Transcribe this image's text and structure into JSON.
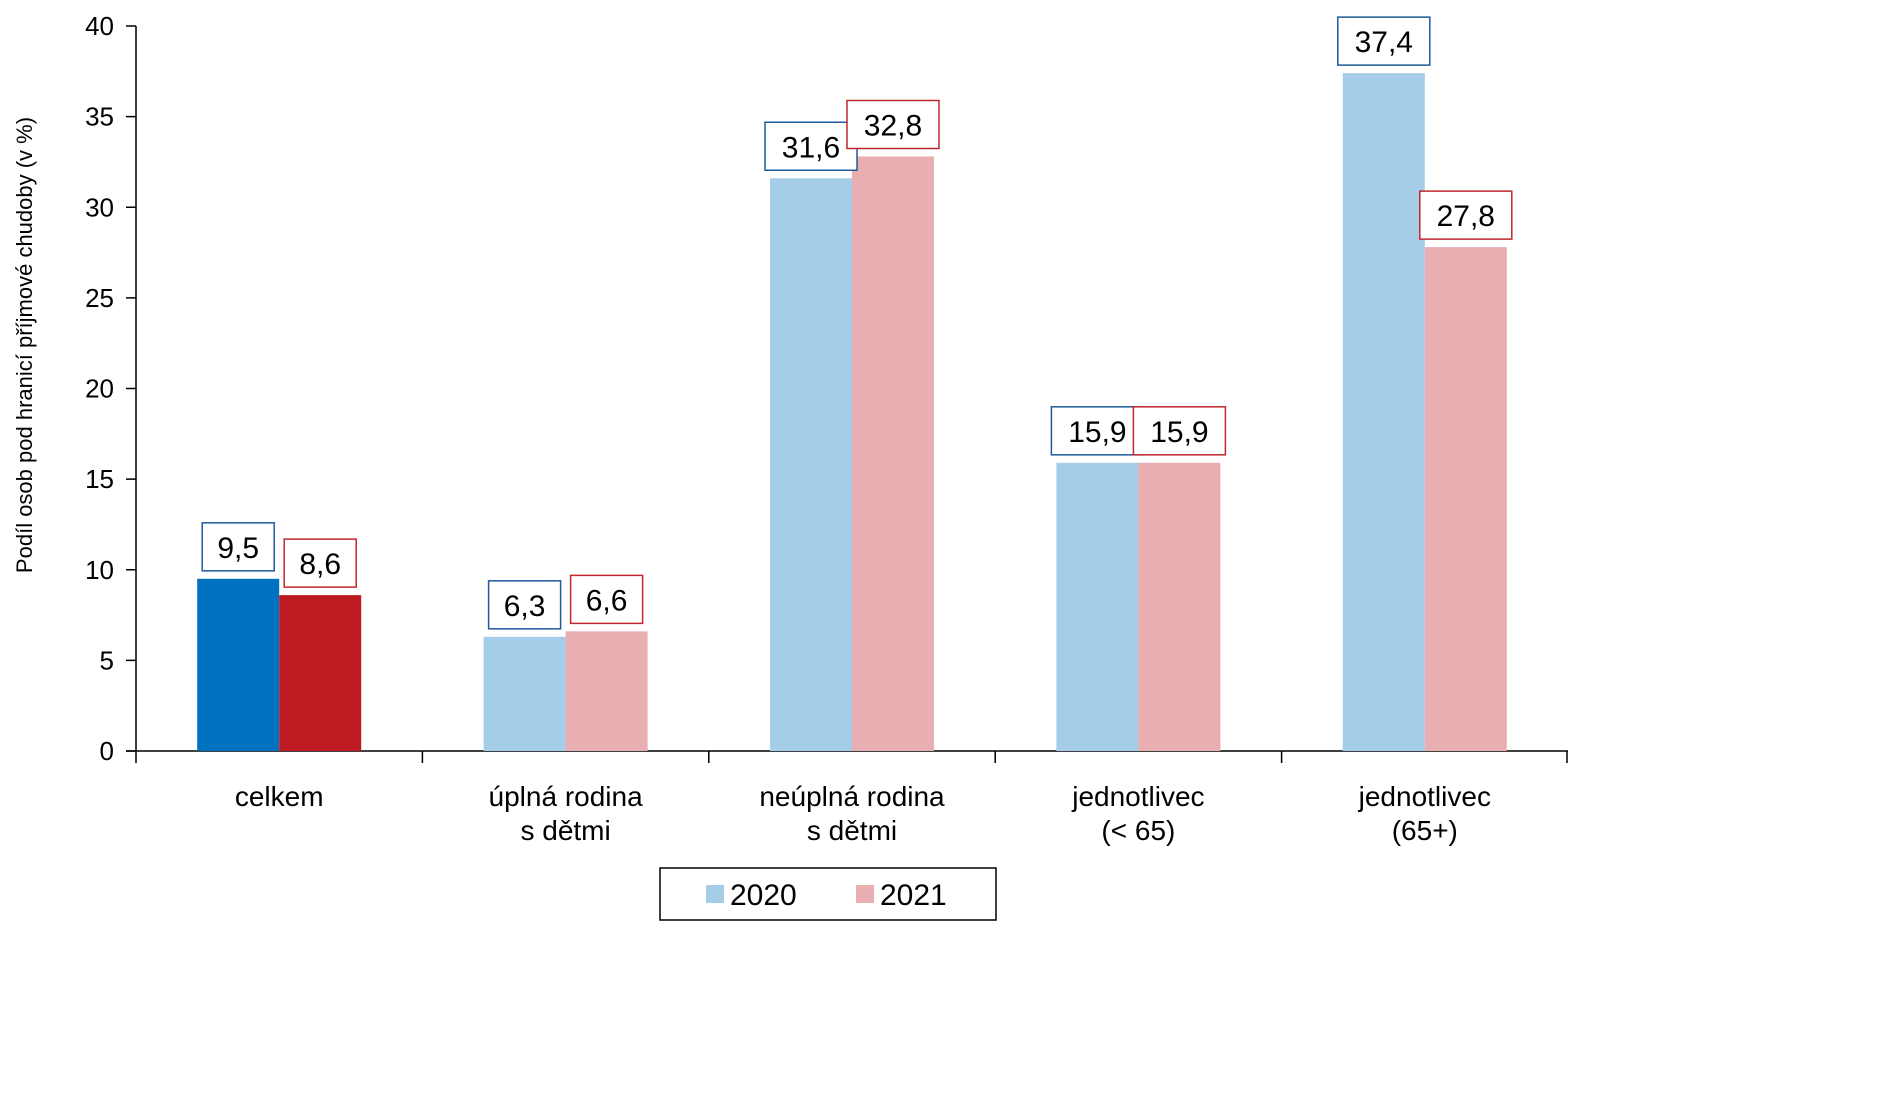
{
  "chart_data": {
    "type": "bar",
    "categories": [
      [
        "celkem"
      ],
      [
        "úplná rodina",
        "s dětmi"
      ],
      [
        "neúplná rodina",
        "s dětmi"
      ],
      [
        "jednotlivec",
        "(< 65)"
      ],
      [
        "jednotlivec",
        "(65+)"
      ]
    ],
    "series": [
      {
        "name": "2020",
        "values": [
          9.5,
          6.3,
          31.6,
          15.9,
          37.4
        ],
        "labels": [
          "9,5",
          "6,3",
          "31,6",
          "15,9",
          "37,4"
        ],
        "color": "#A6CDE8",
        "highlight_color": "#0070C0",
        "label_border": "#1F5B9A"
      },
      {
        "name": "2021",
        "values": [
          8.6,
          6.6,
          32.8,
          15.9,
          27.8
        ],
        "labels": [
          "8,6",
          "6,6",
          "32,8",
          "15,9",
          "27,8"
        ],
        "color": "#E8AEB2",
        "highlight_color": "#BE1A22",
        "label_border": "#C0272D"
      }
    ],
    "highlight_category_index": 0,
    "ylabel": "Podíl osob pod hranicí příjmové chudoby (v %)",
    "ylim": [
      0,
      40
    ],
    "yticks": [
      0,
      5,
      10,
      15,
      20,
      25,
      30,
      35,
      40
    ],
    "grid": false,
    "legend": "bottom-center"
  }
}
